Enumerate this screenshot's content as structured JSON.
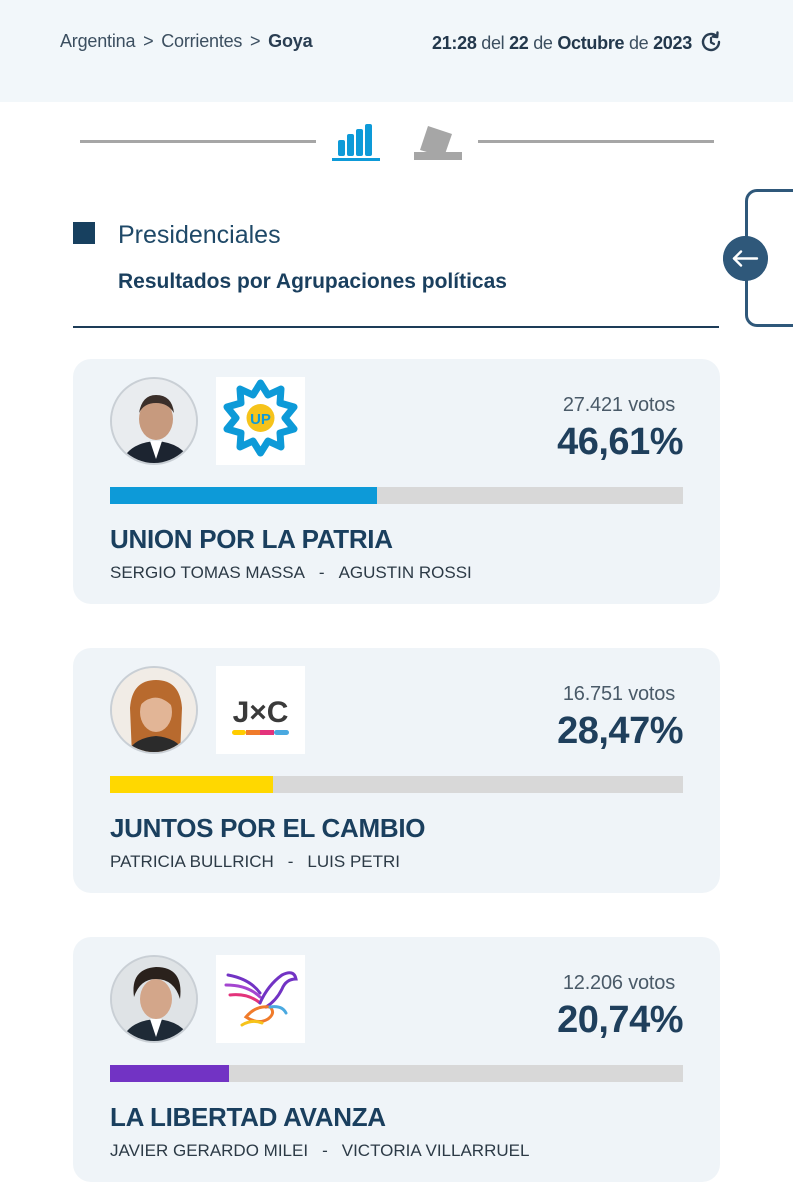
{
  "breadcrumb": {
    "country": "Argentina",
    "separator": ">",
    "province": "Corrientes",
    "city": "Goya"
  },
  "datetime": {
    "time": "21:28",
    "del": "del",
    "day": "22",
    "de1": "de",
    "month": "Octubre",
    "de2": "de",
    "year": "2023"
  },
  "tabs": {
    "results_icon": "bar-chart-icon",
    "participation_icon": "ballot-box-icon"
  },
  "section": {
    "title": "Presidenciales",
    "subtitle": "Resultados por Agrupaciones políticas"
  },
  "side_tab": {
    "icon": "arrow-left-icon"
  },
  "colors": {
    "union": "#0d9ad8",
    "juntos": "#ffd800",
    "libertad": "#7233c4",
    "accent": "#2f587a"
  },
  "results": [
    {
      "votes": "27.421 votos",
      "percent": "46,61%",
      "share": 0.4661,
      "party": "UNION POR LA PATRIA",
      "president": "SERGIO TOMAS MASSA",
      "separator": "-",
      "vice": "AGUSTIN ROSSI",
      "logo_text": "UP"
    },
    {
      "votes": "16.751 votos",
      "percent": "28,47%",
      "share": 0.2847,
      "party": "JUNTOS POR EL CAMBIO",
      "president": "PATRICIA BULLRICH",
      "separator": "-",
      "vice": "LUIS PETRI",
      "logo_text": "J×C"
    },
    {
      "votes": "12.206 votos",
      "percent": "20,74%",
      "share": 0.2074,
      "party": "LA LIBERTAD AVANZA",
      "president": "JAVIER GERARDO MILEI",
      "separator": "-",
      "vice": "VICTORIA VILLARRUEL"
    }
  ]
}
